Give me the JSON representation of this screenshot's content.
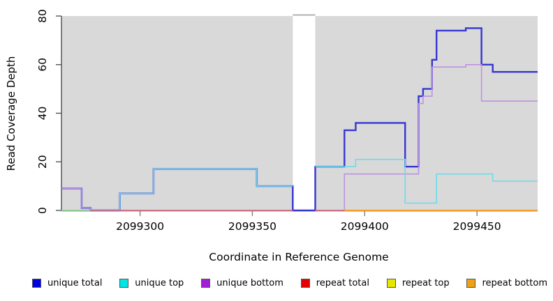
{
  "chart_data": {
    "type": "line",
    "subtype": "step-coverage",
    "title": "",
    "xlabel": "Coordinate in Reference Genome",
    "ylabel": "Read Coverage Depth",
    "xlim": [
      2099265,
      2099477
    ],
    "ylim": [
      0,
      80
    ],
    "x_ticks": [
      2099300,
      2099350,
      2099400,
      2099450
    ],
    "y_ticks": [
      0,
      20,
      40,
      60,
      80
    ],
    "grid": false,
    "plot_bg": "#d9d9d9",
    "axis_color": "#333333",
    "tick_color": "#808080",
    "gap_band": {
      "x_start": 2099368,
      "x_end": 2099378,
      "color": "#ffffff",
      "top_border_color": "#999999"
    },
    "legend_position": "bottom",
    "legend": [
      {
        "label": "unique total",
        "color": "#0000e6"
      },
      {
        "label": "unique top",
        "color": "#00e6e6"
      },
      {
        "label": "unique bottom",
        "color": "#a21fd6"
      },
      {
        "label": "repeat total",
        "color": "#e60000"
      },
      {
        "label": "repeat top",
        "color": "#e6e600"
      },
      {
        "label": "repeat bottom",
        "color": "#f0a010"
      }
    ],
    "series": [
      {
        "name": "repeat top",
        "key": "repeat-top",
        "color": "#e8e84a",
        "width": 1.6,
        "parts": [
          [
            [
              2099265,
              0
            ],
            [
              2099477,
              0
            ]
          ]
        ]
      },
      {
        "name": "unique total",
        "key": "unique-total",
        "color": "#3636d2",
        "width": 2.4,
        "parts": [
          [
            [
              2099265,
              9
            ],
            [
              2099274,
              1
            ],
            [
              2099278,
              0
            ],
            [
              2099291,
              7
            ],
            [
              2099306,
              17
            ],
            [
              2099352,
              10
            ],
            [
              2099368,
              0
            ],
            [
              2099378,
              18
            ],
            [
              2099391,
              33
            ],
            [
              2099396,
              36
            ],
            [
              2099418,
              18
            ],
            [
              2099424,
              47
            ],
            [
              2099426,
              50
            ],
            [
              2099430,
              62
            ],
            [
              2099432,
              74
            ],
            [
              2099445,
              75
            ],
            [
              2099452,
              60
            ],
            [
              2099457,
              57
            ],
            [
              2099477,
              57
            ]
          ]
        ]
      },
      {
        "name": "unique bottom",
        "key": "unique-bottom",
        "color": "#bd93e3",
        "width": 1.6,
        "parts": [
          [
            [
              2099265,
              9
            ],
            [
              2099274,
              1
            ],
            [
              2099278,
              0
            ],
            [
              2099368,
              0
            ]
          ],
          [
            [
              2099378,
              0
            ],
            [
              2099391,
              15
            ],
            [
              2099424,
              44
            ],
            [
              2099426,
              47
            ],
            [
              2099430,
              59
            ],
            [
              2099445,
              60
            ],
            [
              2099452,
              45
            ],
            [
              2099477,
              45
            ]
          ]
        ]
      },
      {
        "name": "unique top",
        "key": "unique-top",
        "color": "#6edce8",
        "width": 1.6,
        "parts": [
          [
            [
              2099265,
              0
            ],
            [
              2099291,
              7
            ],
            [
              2099306,
              17
            ],
            [
              2099352,
              10
            ],
            [
              2099368,
              10
            ]
          ],
          [
            [
              2099378,
              18
            ],
            [
              2099396,
              21
            ],
            [
              2099418,
              3
            ],
            [
              2099432,
              15
            ],
            [
              2099457,
              12
            ],
            [
              2099477,
              12
            ]
          ]
        ]
      },
      {
        "name": "zero overlap segment",
        "key": "green-zero-segment",
        "color": "#93c893",
        "width": 1.6,
        "parts": [
          [
            [
              2099265,
              0
            ],
            [
              2099278,
              0
            ]
          ]
        ]
      },
      {
        "name": "repeat total",
        "key": "repeat-total",
        "color": "#d4627d",
        "width": 1.6,
        "parts": [
          [
            [
              2099278,
              0
            ],
            [
              2099368,
              0
            ]
          ],
          [
            [
              2099378,
              0
            ],
            [
              2099391,
              0
            ]
          ]
        ]
      },
      {
        "name": "repeat bottom",
        "key": "repeat-bottom",
        "color": "#f59d2e",
        "width": 1.9,
        "parts": [
          [
            [
              2099391,
              0
            ],
            [
              2099477,
              0
            ]
          ]
        ]
      }
    ]
  }
}
